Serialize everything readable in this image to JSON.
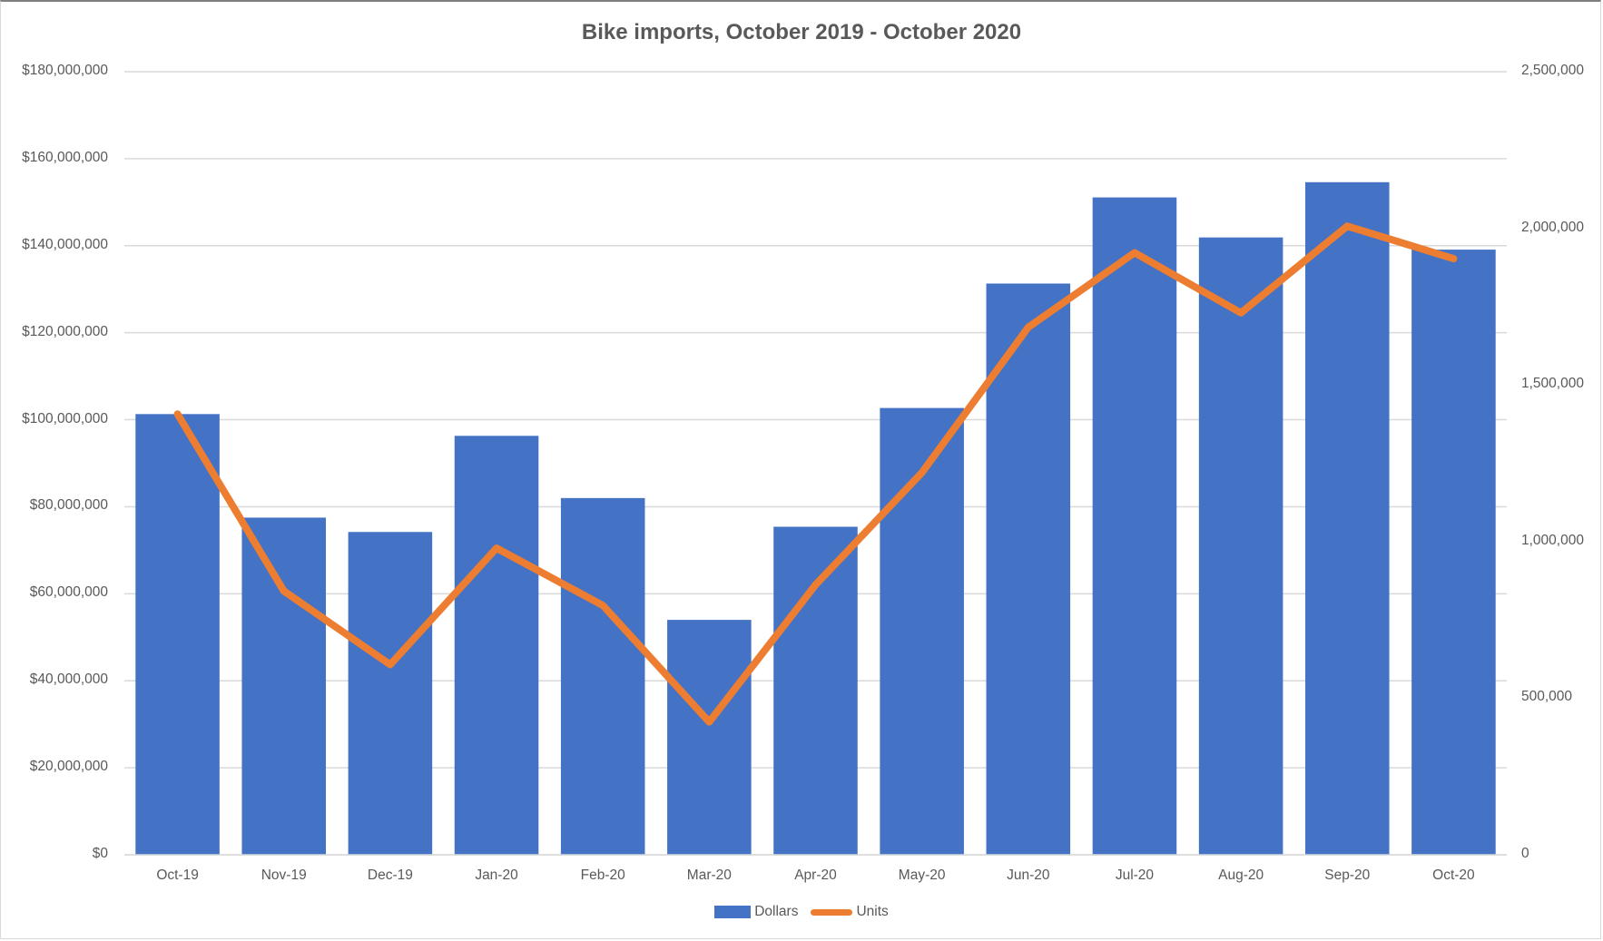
{
  "chart_data": {
    "type": "bar",
    "title": "Bike imports, October 2019 - October 2020",
    "categories": [
      "Oct-19",
      "Nov-19",
      "Dec-19",
      "Jan-20",
      "Feb-20",
      "Mar-20",
      "Apr-20",
      "May-20",
      "Jun-20",
      "Jul-20",
      "Aug-20",
      "Sep-20",
      "Oct-20"
    ],
    "series": [
      {
        "name": "Dollars",
        "type": "bar",
        "axis": "left",
        "color": "#4472c4",
        "values": [
          101300000,
          77500000,
          74200000,
          96300000,
          82000000,
          54000000,
          75400000,
          102700000,
          131300000,
          151100000,
          141900000,
          154600000,
          139100000
        ]
      },
      {
        "name": "Units",
        "type": "line",
        "axis": "right",
        "color": "#ed7d31",
        "values": [
          1407000,
          842000,
          607000,
          979000,
          796000,
          424000,
          862000,
          1220000,
          1684000,
          1922000,
          1730000,
          2007000,
          1903000
        ]
      }
    ],
    "xlabel": "",
    "ylabel_left": "",
    "ylabel_right": "",
    "ylim_left": [
      0,
      180000000
    ],
    "ylim_right": [
      0,
      2500000
    ],
    "left_ticks": [
      "$0",
      "$20,000,000",
      "$40,000,000",
      "$60,000,000",
      "$80,000,000",
      "$100,000,000",
      "$120,000,000",
      "$140,000,000",
      "$160,000,000",
      "$180,000,000"
    ],
    "right_ticks": [
      "0",
      "500,000",
      "1,000,000",
      "1,500,000",
      "2,000,000",
      "2,500,000"
    ],
    "grid": true,
    "legend_position": "bottom"
  },
  "legend": {
    "dollars": "Dollars",
    "units": "Units"
  }
}
